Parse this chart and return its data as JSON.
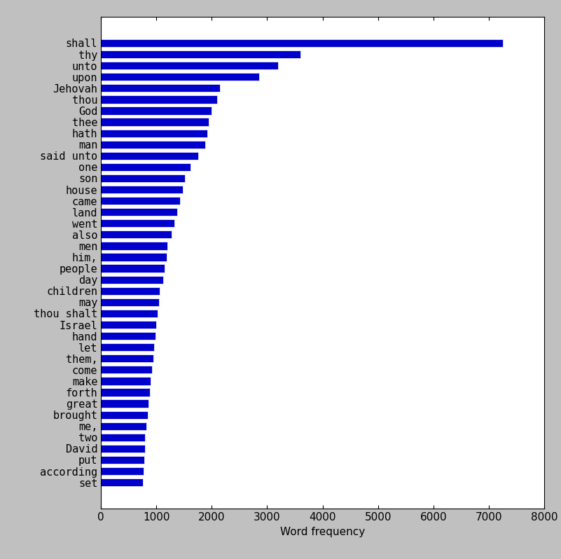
{
  "categories": [
    "shall",
    "thy",
    "unto",
    "upon",
    "Jehovah",
    "thou",
    "God",
    "thee",
    "hath",
    "man",
    "said unto",
    "one",
    "son",
    "house",
    "came",
    "land",
    "went",
    "also",
    "men",
    "him,",
    "people",
    "day",
    "children",
    "may",
    "thou shalt",
    "Israel",
    "hand",
    "let",
    "them,",
    "come",
    "make",
    "forth",
    "great",
    "brought",
    "me,",
    "two",
    "David",
    "put",
    "according",
    "set"
  ],
  "values": [
    7250,
    3600,
    3200,
    2850,
    2150,
    2100,
    2000,
    1950,
    1920,
    1880,
    1750,
    1620,
    1520,
    1480,
    1430,
    1380,
    1320,
    1280,
    1200,
    1180,
    1150,
    1120,
    1060,
    1050,
    1020,
    1000,
    980,
    960,
    940,
    920,
    900,
    880,
    860,
    840,
    820,
    800,
    790,
    780,
    770,
    760
  ],
  "bar_color": "#0000cc",
  "background_color": "#c0c0c0",
  "plot_background": "#ffffff",
  "xlabel": "Word frequency",
  "xlim": [
    0,
    8000
  ],
  "xticks": [
    0,
    1000,
    2000,
    3000,
    4000,
    5000,
    6000,
    7000,
    8000
  ],
  "label_fontsize": 11,
  "tick_fontsize": 11
}
